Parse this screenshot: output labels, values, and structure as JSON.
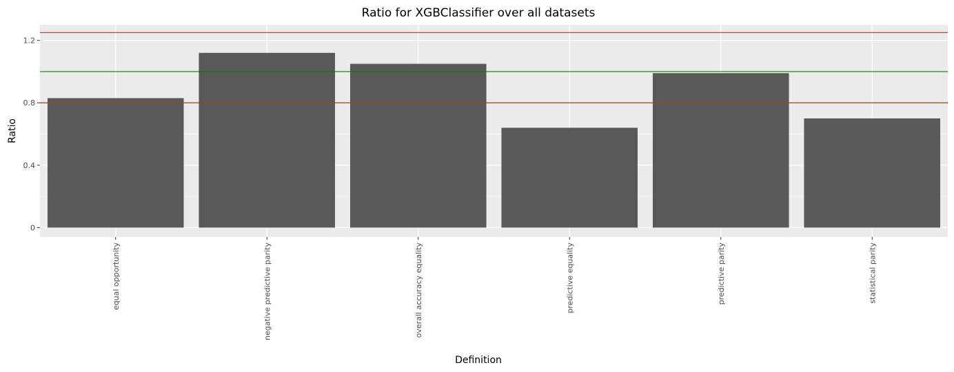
{
  "chart_data": {
    "type": "bar",
    "title": "Ratio for XGBClassifier over all datasets",
    "xlabel": "Definition",
    "ylabel": "Ratio",
    "categories": [
      "equal opportunity",
      "negative predictive parity",
      "overall accuracy equality",
      "predictive equality",
      "predictive parity",
      "statistical parity"
    ],
    "values": [
      0.83,
      1.12,
      1.05,
      0.64,
      0.99,
      0.7
    ],
    "ylim": [
      -0.06,
      1.3
    ],
    "yticks": [
      0,
      0.4,
      0.8,
      1.2
    ],
    "ytick_labels": [
      "0",
      "0.4",
      "0.8",
      "1.2"
    ],
    "reference_lines": [
      {
        "y": 1.25,
        "color": "#e41a1c"
      },
      {
        "y": 1.0,
        "color": "#008000"
      },
      {
        "y": 0.8,
        "color": "#e41a1c"
      }
    ],
    "bar_color": "#595959",
    "panel_color": "#ebebeb",
    "grid": true,
    "legend": "none"
  }
}
